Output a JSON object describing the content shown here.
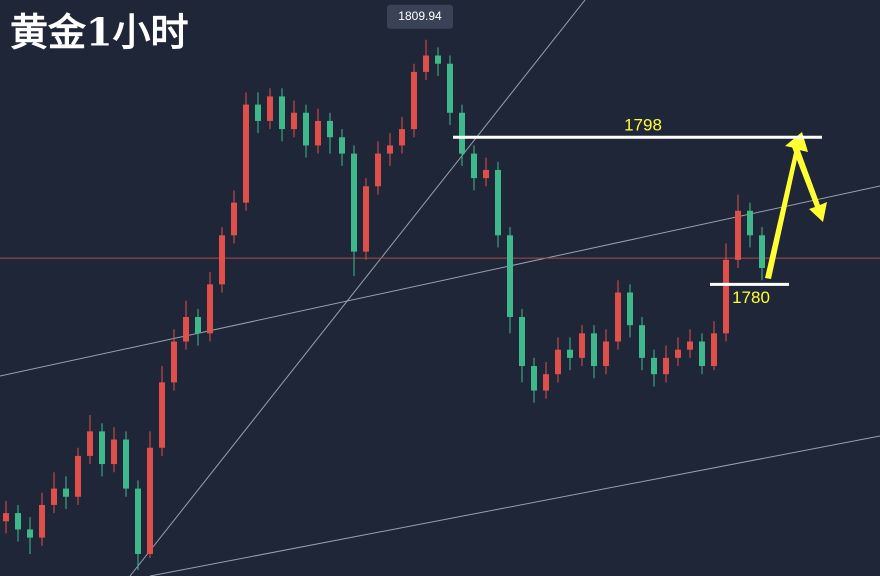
{
  "chart_data": {
    "type": "candlestick",
    "title": "黄金1小时",
    "ylim": [
      1744.3,
      1814.8
    ],
    "up_color": "#e0504a",
    "down_color": "#3fb98c",
    "price_line": 1783.2,
    "max_label": 1809.94,
    "resistance": 1798,
    "support": 1780,
    "open": [
      1751,
      1752,
      1750,
      1749,
      1753,
      1755,
      1754,
      1759,
      1762,
      1758,
      1761,
      1755,
      1747,
      1760,
      1768,
      1773,
      1776,
      1774,
      1780,
      1786,
      1790,
      1802,
      1800,
      1803,
      1799,
      1801,
      1797,
      1800,
      1798,
      1796,
      1784,
      1792,
      1796,
      1797,
      1799,
      1806,
      1808,
      1807,
      1801,
      1796,
      1793,
      1794,
      1786,
      1776,
      1770,
      1767,
      1769,
      1772,
      1771,
      1774,
      1770,
      1773,
      1779,
      1775,
      1771,
      1769,
      1771,
      1772,
      1773,
      1770,
      1774,
      1783,
      1789,
      1786
    ],
    "high": [
      1753.5,
      1753,
      1751.5,
      1754.5,
      1757,
      1756.5,
      1760,
      1764,
      1763,
      1762.5,
      1762,
      1756,
      1762,
      1770,
      1774.5,
      1778,
      1777,
      1781.5,
      1787,
      1791.5,
      1803.5,
      1803.5,
      1804,
      1804,
      1802.5,
      1802,
      1801.5,
      1801,
      1799,
      1797,
      1793,
      1797.5,
      1798.5,
      1800.5,
      1807,
      1809.94,
      1809,
      1808,
      1802,
      1797,
      1795.5,
      1795,
      1787,
      1777,
      1771,
      1770.5,
      1773.5,
      1773.5,
      1775,
      1775,
      1774.5,
      1780.5,
      1780,
      1776,
      1772,
      1772.5,
      1773.5,
      1774.5,
      1774,
      1775.5,
      1785,
      1791,
      1790,
      1787
    ],
    "low": [
      1749.5,
      1748.5,
      1747,
      1748,
      1752,
      1752.5,
      1753,
      1758,
      1756.5,
      1757,
      1754,
      1745,
      1746.5,
      1759,
      1767,
      1772,
      1772.5,
      1773,
      1779,
      1785,
      1789,
      1798.5,
      1799,
      1797.5,
      1798,
      1795.5,
      1796,
      1796,
      1794.5,
      1781,
      1783,
      1791,
      1794.5,
      1796,
      1798,
      1805,
      1805.5,
      1799.5,
      1794.5,
      1791.5,
      1792,
      1784.5,
      1774,
      1768,
      1765.5,
      1766,
      1768,
      1769.5,
      1770,
      1768.5,
      1769,
      1772,
      1773.5,
      1769.5,
      1767.5,
      1768,
      1770,
      1771,
      1769,
      1769.5,
      1773,
      1782,
      1784.5,
      1780.5
    ],
    "close": [
      1752,
      1750,
      1749,
      1753,
      1755,
      1754,
      1759,
      1762,
      1758,
      1761,
      1755,
      1747,
      1760,
      1768,
      1773,
      1776,
      1774,
      1780,
      1786,
      1790,
      1802,
      1800,
      1803,
      1799,
      1801,
      1797,
      1800,
      1798,
      1796,
      1784,
      1792,
      1796,
      1797,
      1799,
      1806,
      1808,
      1807,
      1801,
      1796,
      1793,
      1794,
      1786,
      1776,
      1770,
      1767,
      1769,
      1772,
      1771,
      1774,
      1770,
      1773,
      1779,
      1775,
      1771,
      1769,
      1771,
      1772,
      1773,
      1770,
      1774,
      1783,
      1789,
      1786,
      1782
    ]
  }
}
